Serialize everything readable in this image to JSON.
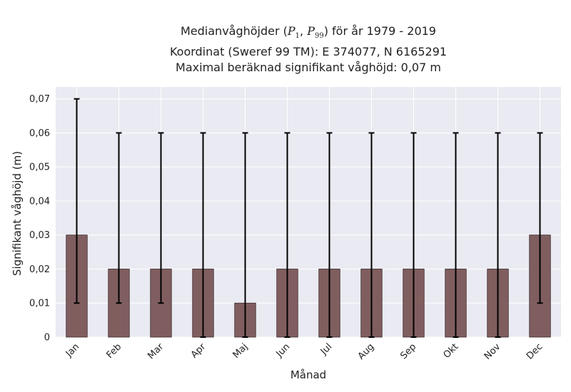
{
  "chart_data": {
    "type": "bar",
    "title": {
      "line1_prefix": "Medianvåghöjder (",
      "p_low": "P",
      "p_low_sub": "1",
      "p_sep": ", ",
      "p_high": "P",
      "p_high_sub": "99",
      "line1_suffix": ") för år 1979 - 2019",
      "line2": "Koordinat (Sweref 99 TM): E 374077, N 6165291",
      "line3": "Maximal beräknad signifikant våghöjd: 0,07 m"
    },
    "xlabel": "Månad",
    "ylabel": "Signifikant våghöjd (m)",
    "categories": [
      "Jan",
      "Feb",
      "Mar",
      "Apr",
      "Maj",
      "Jun",
      "Jul",
      "Aug",
      "Sep",
      "Okt",
      "Nov",
      "Dec"
    ],
    "values": [
      0.03,
      0.02,
      0.02,
      0.02,
      0.01,
      0.02,
      0.02,
      0.02,
      0.02,
      0.02,
      0.02,
      0.03
    ],
    "error_low": [
      0.01,
      0.01,
      0.01,
      0.0,
      0.0,
      0.0,
      0.0,
      0.0,
      0.0,
      0.0,
      0.0,
      0.01
    ],
    "error_high": [
      0.07,
      0.06,
      0.06,
      0.06,
      0.06,
      0.06,
      0.06,
      0.06,
      0.06,
      0.06,
      0.06,
      0.06
    ],
    "ylim": [
      0,
      0.0735
    ],
    "yticks": [
      0,
      0.01,
      0.02,
      0.03,
      0.04,
      0.05,
      0.06,
      0.07
    ],
    "ytick_labels": [
      "0",
      "0,01",
      "0,02",
      "0,03",
      "0,04",
      "0,05",
      "0,06",
      "0,07"
    ],
    "grid": true,
    "colors": {
      "bar": "#7a5656",
      "bar_edge": "#3a2a2a",
      "errorbar": "#000000",
      "plot_background": "#eaeaf2",
      "grid": "#ffffff"
    }
  }
}
